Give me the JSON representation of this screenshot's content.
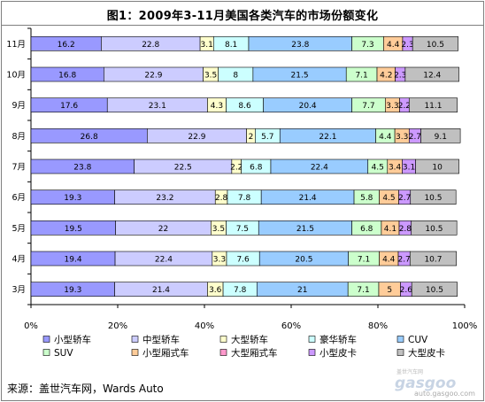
{
  "chart_data": {
    "type": "bar",
    "orientation": "horizontal",
    "stacked": "percent",
    "title": "图1：2009年3-11月美国各类汽车的市场份额变化",
    "source": "来源：盖世汽车网，Wards Auto",
    "watermark": "auto.gasgoo.com",
    "categories": [
      "11月",
      "10月",
      "9月",
      "8月",
      "7月",
      "6月",
      "5月",
      "4月",
      "3月"
    ],
    "xlim": [
      0,
      100
    ],
    "xticks": [
      "0%",
      "20%",
      "40%",
      "60%",
      "80%",
      "100%"
    ],
    "grid": false,
    "legend_position": "bottom",
    "series": [
      {
        "name": "小型轿车",
        "color": "#9999ff",
        "values": [
          16.2,
          16.8,
          17.6,
          26.8,
          23.8,
          19.3,
          19.5,
          19.4,
          19.3
        ]
      },
      {
        "name": "中型轿车",
        "color": "#ccccff",
        "values": [
          22.8,
          22.9,
          23.1,
          22.9,
          22.5,
          23.2,
          22,
          22.4,
          21.4
        ]
      },
      {
        "name": "大型轿车",
        "color": "#ffffcc",
        "values": [
          3.1,
          3.5,
          4.3,
          2,
          2.2,
          2.8,
          3.5,
          3.3,
          3.6
        ]
      },
      {
        "name": "豪华轿车",
        "color": "#ccffff",
        "values": [
          8.1,
          8,
          8.6,
          5.7,
          6.8,
          7.8,
          7.5,
          7.6,
          7.8
        ]
      },
      {
        "name": "CUV",
        "color": "#99ccff",
        "values": [
          23.8,
          21.5,
          20.4,
          22.1,
          22.4,
          21.4,
          21.5,
          20.5,
          21
        ]
      },
      {
        "name": "SUV",
        "color": "#ccffcc",
        "values": [
          7.3,
          7.1,
          7.7,
          4.4,
          4.5,
          5.8,
          6.8,
          7.1,
          7.1
        ]
      },
      {
        "name": "小型厢式车",
        "color": "#ffcc99",
        "values": [
          4.4,
          4.2,
          3.3,
          3.3,
          3.4,
          4.5,
          4.1,
          4.4,
          5
        ]
      },
      {
        "name": "大型厢式车",
        "color": "#ff99cc",
        "values": [
          null,
          null,
          null,
          null,
          null,
          null,
          null,
          null,
          null
        ]
      },
      {
        "name": "小型皮卡",
        "color": "#cc99ff",
        "values": [
          2.3,
          2.3,
          2.2,
          2.7,
          3.1,
          2.7,
          2.8,
          2.7,
          2.6
        ]
      },
      {
        "name": "大型皮卡",
        "color": "#c0c0c0",
        "values": [
          10.5,
          12.4,
          11.1,
          9.1,
          10,
          10.5,
          10.5,
          10.7,
          10.5
        ]
      }
    ]
  }
}
